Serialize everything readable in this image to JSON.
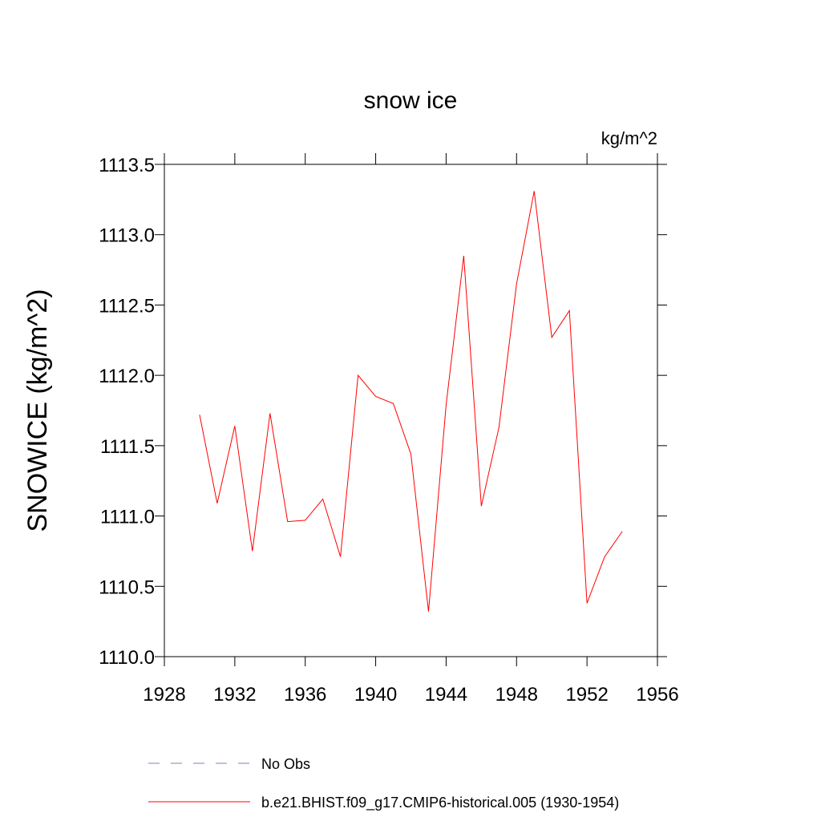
{
  "chart_data": {
    "type": "line",
    "title": "snow ice",
    "units": "kg/m^2",
    "y_label": "SNOWICE  (kg/m^2)",
    "x": [
      1930,
      1931,
      1932,
      1933,
      1934,
      1935,
      1936,
      1937,
      1938,
      1939,
      1940,
      1941,
      1942,
      1943,
      1944,
      1945,
      1946,
      1947,
      1948,
      1949,
      1950,
      1951,
      1952,
      1953,
      1954
    ],
    "series": [
      {
        "name": "b.e21.BHIST.f09_g17.CMIP6-historical.005 (1930-1954)",
        "color": "#ff0000",
        "values": [
          1111.72,
          1111.09,
          1111.64,
          1110.75,
          1111.73,
          1110.96,
          1110.97,
          1111.12,
          1110.71,
          1112.0,
          1111.85,
          1111.8,
          1111.44,
          1110.32,
          1111.79,
          1112.85,
          1111.07,
          1111.63,
          1112.65,
          1113.31,
          1112.27,
          1112.46,
          1110.38,
          1110.71,
          1110.89
        ]
      }
    ],
    "legend_items": [
      {
        "name": "No Obs",
        "color": "#8080c0",
        "dashed": true
      }
    ],
    "xlim": [
      1928,
      1956
    ],
    "xticks": [
      1928,
      1932,
      1936,
      1940,
      1944,
      1948,
      1952,
      1956
    ],
    "ylim": [
      1110.0,
      1113.5
    ],
    "yticks": [
      {
        "value": 1110,
        "label": "1110.0"
      },
      1110.5,
      {
        "value": 1111,
        "label": "1111.0"
      },
      1111.5,
      {
        "value": 1112,
        "label": "1112.0"
      },
      1112.5,
      {
        "value": 1113,
        "label": "1113.0"
      },
      1113.5
    ],
    "grid": false
  }
}
